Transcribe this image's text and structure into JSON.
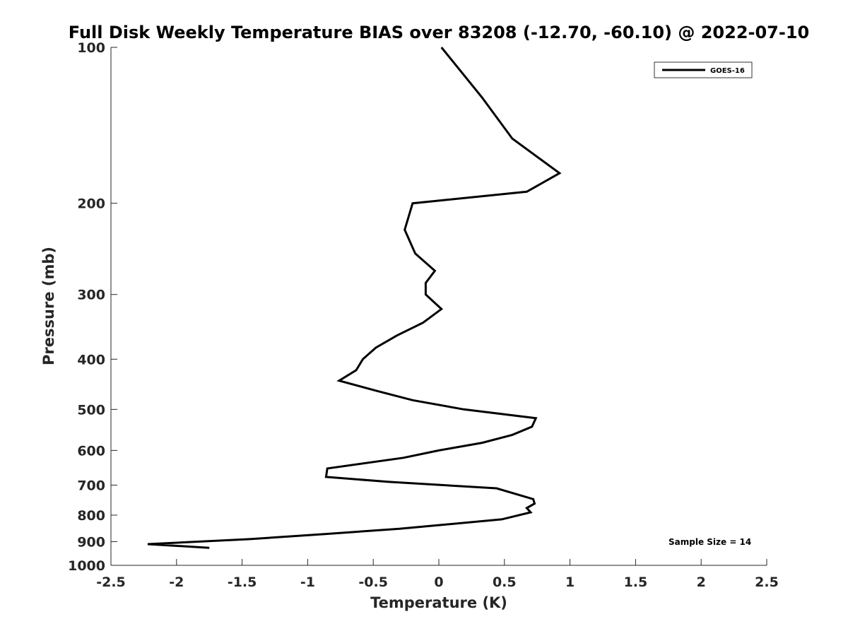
{
  "chart_data": {
    "type": "line",
    "title": "Full Disk Weekly Temperature BIAS over 83208 (-12.70, -60.10) @ 2022-07-10",
    "xlabel": "Temperature (K)",
    "ylabel": "Pressure (mb)",
    "xlim": [
      -2.5,
      2.5
    ],
    "ylim": [
      100,
      1000
    ],
    "y_scale": "log",
    "y_reversed": true,
    "x_ticks": [
      "-2.5",
      "-2",
      "-1.5",
      "-1",
      "-0.5",
      "0",
      "0.5",
      "1",
      "1.5",
      "2",
      "2.5"
    ],
    "y_ticks": [
      "100",
      "200",
      "300",
      "400",
      "500",
      "600",
      "700",
      "800",
      "900",
      "1000"
    ],
    "grid": false,
    "legend_position": "top-right",
    "annotation": "Sample Size = 14",
    "series": [
      {
        "name": "GOES-16",
        "color": "#000000",
        "points": [
          [
            0.02,
            100
          ],
          [
            0.33,
            125
          ],
          [
            0.56,
            150
          ],
          [
            0.92,
            175
          ],
          [
            0.67,
            190
          ],
          [
            -0.2,
            200
          ],
          [
            -0.26,
            225
          ],
          [
            -0.18,
            250
          ],
          [
            -0.03,
            270
          ],
          [
            -0.1,
            285
          ],
          [
            -0.1,
            300
          ],
          [
            0.02,
            320
          ],
          [
            -0.12,
            340
          ],
          [
            -0.32,
            360
          ],
          [
            -0.48,
            380
          ],
          [
            -0.58,
            400
          ],
          [
            -0.63,
            420
          ],
          [
            -0.76,
            440
          ],
          [
            -0.48,
            460
          ],
          [
            -0.2,
            480
          ],
          [
            0.19,
            500
          ],
          [
            0.74,
            520
          ],
          [
            0.71,
            540
          ],
          [
            0.56,
            560
          ],
          [
            0.33,
            580
          ],
          [
            0.0,
            600
          ],
          [
            -0.27,
            620
          ],
          [
            -0.85,
            650
          ],
          [
            -0.86,
            675
          ],
          [
            -0.38,
            690
          ],
          [
            0.44,
            710
          ],
          [
            0.72,
            745
          ],
          [
            0.73,
            760
          ],
          [
            0.67,
            775
          ],
          [
            0.7,
            790
          ],
          [
            0.48,
            815
          ],
          [
            -0.3,
            850
          ],
          [
            -0.87,
            870
          ],
          [
            -1.44,
            890
          ],
          [
            -2.22,
            910
          ],
          [
            -1.75,
            925
          ]
        ]
      }
    ]
  }
}
